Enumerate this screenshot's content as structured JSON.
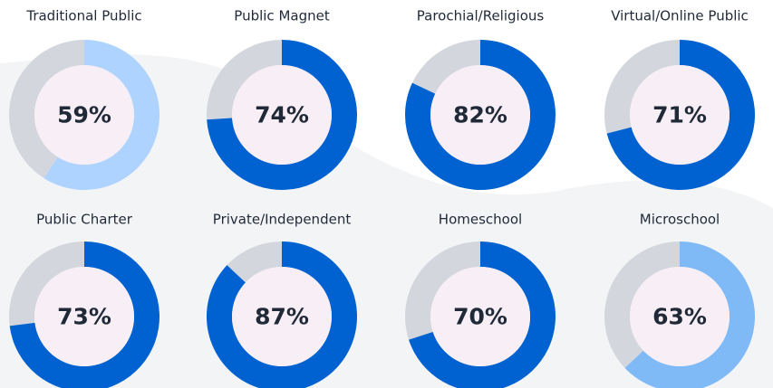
{
  "chart_data": [
    {
      "type": "donut",
      "title": "Traditional Public",
      "values": [
        59
      ],
      "value_labels": [
        "59%"
      ],
      "color": "#aed3ff",
      "rest_color": "#d3d6dc",
      "ylim": [
        0,
        100
      ]
    },
    {
      "type": "donut",
      "title": "Public Magnet",
      "values": [
        74
      ],
      "value_labels": [
        "74%"
      ],
      "color": "#0062d1",
      "rest_color": "#d3d6dc",
      "ylim": [
        0,
        100
      ]
    },
    {
      "type": "donut",
      "title": "Parochial/Religious",
      "values": [
        82
      ],
      "value_labels": [
        "82%"
      ],
      "color": "#0062d1",
      "rest_color": "#d3d6dc",
      "ylim": [
        0,
        100
      ]
    },
    {
      "type": "donut",
      "title": "Virtual/Online Public",
      "values": [
        71
      ],
      "value_labels": [
        "71%"
      ],
      "color": "#0062d1",
      "rest_color": "#d3d6dc",
      "ylim": [
        0,
        100
      ]
    },
    {
      "type": "donut",
      "title": "Public Charter",
      "values": [
        73
      ],
      "value_labels": [
        "73%"
      ],
      "color": "#0062d1",
      "rest_color": "#d3d6dc",
      "ylim": [
        0,
        100
      ]
    },
    {
      "type": "donut",
      "title": "Private/Independent",
      "values": [
        87
      ],
      "value_labels": [
        "87%"
      ],
      "color": "#0062d1",
      "rest_color": "#d3d6dc",
      "ylim": [
        0,
        100
      ]
    },
    {
      "type": "donut",
      "title": "Homeschool",
      "values": [
        70
      ],
      "value_labels": [
        "70%"
      ],
      "color": "#0062d1",
      "rest_color": "#d3d6dc",
      "ylim": [
        0,
        100
      ]
    },
    {
      "type": "donut",
      "title": "Microschool",
      "values": [
        63
      ],
      "value_labels": [
        "63%"
      ],
      "color": "#7fbaf7",
      "rest_color": "#d3d6dc",
      "ylim": [
        0,
        100
      ]
    }
  ]
}
